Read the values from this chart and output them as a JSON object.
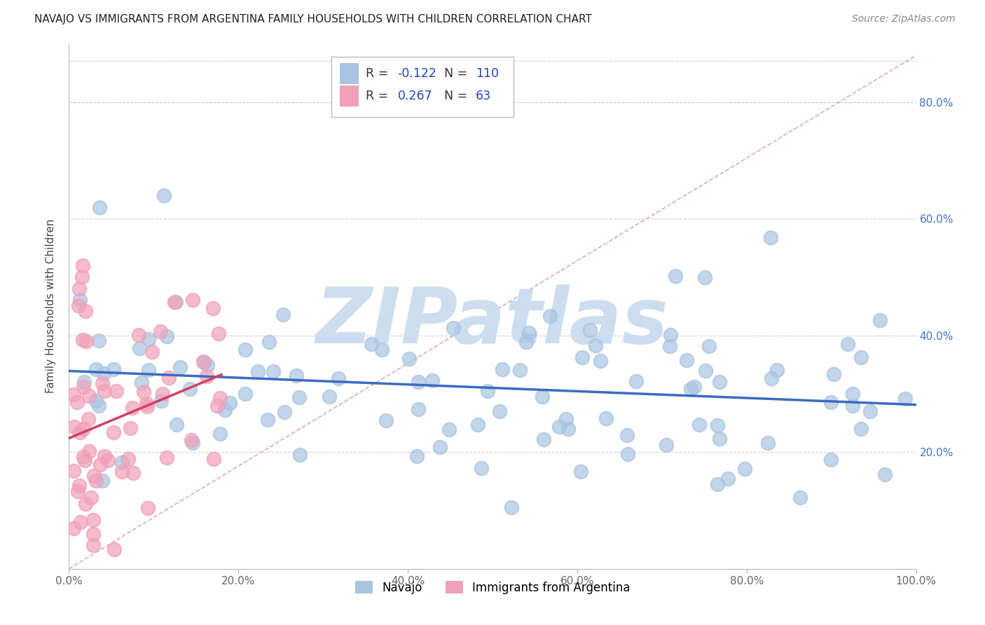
{
  "title": "NAVAJO VS IMMIGRANTS FROM ARGENTINA FAMILY HOUSEHOLDS WITH CHILDREN CORRELATION CHART",
  "source": "Source: ZipAtlas.com",
  "ylabel": "Family Households with Children",
  "navajo_R": -0.122,
  "navajo_N": 110,
  "argentina_R": 0.267,
  "argentina_N": 63,
  "navajo_color": "#a8c4e0",
  "argentina_color": "#f0a0b8",
  "navajo_line_color": "#3a6bc4",
  "argentina_line_color": "#d04060",
  "diag_color": "#e0a0b0",
  "grid_color": "#d0d0d0",
  "background_color": "#ffffff",
  "watermark_text": "ZIPatlas",
  "watermark_color": "#ccddf0",
  "legend_R_N_color": "#2244cc",
  "ytick_color": "#4472c4",
  "xlim": [
    0.0,
    1.0
  ],
  "ylim": [
    0.0,
    0.9
  ],
  "ytick_vals": [
    0.2,
    0.4,
    0.6,
    0.8
  ],
  "ytick_labels": [
    "20.0%",
    "40.0%",
    "60.0%",
    "80.0%"
  ],
  "xtick_vals": [
    0.0,
    0.2,
    0.4,
    0.6,
    0.8,
    1.0
  ],
  "xtick_labels": [
    "0.0%",
    "20.0%",
    "40.0%",
    "60.0%",
    "80.0%",
    "100.0%"
  ],
  "bottom_legend_labels": [
    "Navajo",
    "Immigrants from Argentina"
  ]
}
